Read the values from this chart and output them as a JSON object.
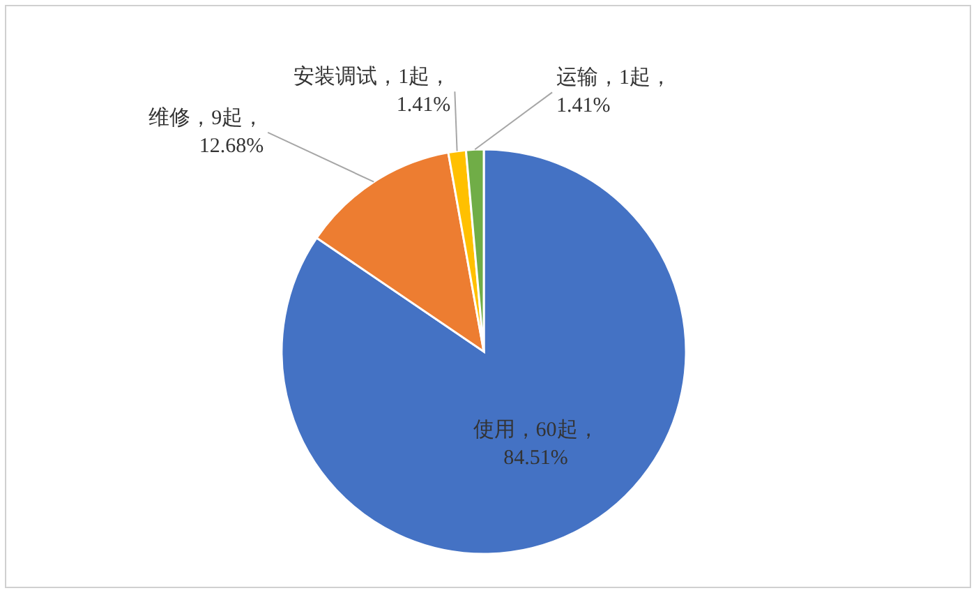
{
  "chart_data": {
    "type": "pie",
    "categories": [
      "使用，60起，84.51%",
      "维修，9起，12.68%",
      "安装调试，1起，1.41%",
      "运输，1起，1.41%"
    ],
    "values": [
      60,
      9,
      1,
      1
    ],
    "colors": [
      "#4472c4",
      "#ed7d31",
      "#ffc000",
      "#70ad47"
    ]
  }
}
